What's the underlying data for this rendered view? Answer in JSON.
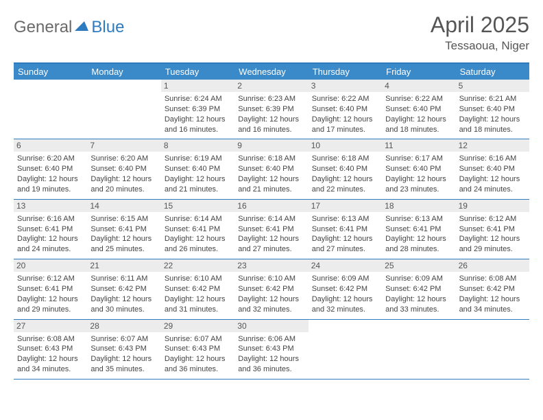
{
  "logo": {
    "part1": "General",
    "part2": "Blue"
  },
  "title": "April 2025",
  "location": "Tessaoua, Niger",
  "header_bg": "#3a89c9",
  "border_color": "#2f7bbf",
  "daynum_bg": "#ececec",
  "weekdays": [
    "Sunday",
    "Monday",
    "Tuesday",
    "Wednesday",
    "Thursday",
    "Friday",
    "Saturday"
  ],
  "weeks": [
    [
      null,
      null,
      {
        "n": "1",
        "sr": "6:24 AM",
        "ss": "6:39 PM",
        "dl": "12 hours and 16 minutes."
      },
      {
        "n": "2",
        "sr": "6:23 AM",
        "ss": "6:39 PM",
        "dl": "12 hours and 16 minutes."
      },
      {
        "n": "3",
        "sr": "6:22 AM",
        "ss": "6:40 PM",
        "dl": "12 hours and 17 minutes."
      },
      {
        "n": "4",
        "sr": "6:22 AM",
        "ss": "6:40 PM",
        "dl": "12 hours and 18 minutes."
      },
      {
        "n": "5",
        "sr": "6:21 AM",
        "ss": "6:40 PM",
        "dl": "12 hours and 18 minutes."
      }
    ],
    [
      {
        "n": "6",
        "sr": "6:20 AM",
        "ss": "6:40 PM",
        "dl": "12 hours and 19 minutes."
      },
      {
        "n": "7",
        "sr": "6:20 AM",
        "ss": "6:40 PM",
        "dl": "12 hours and 20 minutes."
      },
      {
        "n": "8",
        "sr": "6:19 AM",
        "ss": "6:40 PM",
        "dl": "12 hours and 21 minutes."
      },
      {
        "n": "9",
        "sr": "6:18 AM",
        "ss": "6:40 PM",
        "dl": "12 hours and 21 minutes."
      },
      {
        "n": "10",
        "sr": "6:18 AM",
        "ss": "6:40 PM",
        "dl": "12 hours and 22 minutes."
      },
      {
        "n": "11",
        "sr": "6:17 AM",
        "ss": "6:40 PM",
        "dl": "12 hours and 23 minutes."
      },
      {
        "n": "12",
        "sr": "6:16 AM",
        "ss": "6:40 PM",
        "dl": "12 hours and 24 minutes."
      }
    ],
    [
      {
        "n": "13",
        "sr": "6:16 AM",
        "ss": "6:41 PM",
        "dl": "12 hours and 24 minutes."
      },
      {
        "n": "14",
        "sr": "6:15 AM",
        "ss": "6:41 PM",
        "dl": "12 hours and 25 minutes."
      },
      {
        "n": "15",
        "sr": "6:14 AM",
        "ss": "6:41 PM",
        "dl": "12 hours and 26 minutes."
      },
      {
        "n": "16",
        "sr": "6:14 AM",
        "ss": "6:41 PM",
        "dl": "12 hours and 27 minutes."
      },
      {
        "n": "17",
        "sr": "6:13 AM",
        "ss": "6:41 PM",
        "dl": "12 hours and 27 minutes."
      },
      {
        "n": "18",
        "sr": "6:13 AM",
        "ss": "6:41 PM",
        "dl": "12 hours and 28 minutes."
      },
      {
        "n": "19",
        "sr": "6:12 AM",
        "ss": "6:41 PM",
        "dl": "12 hours and 29 minutes."
      }
    ],
    [
      {
        "n": "20",
        "sr": "6:12 AM",
        "ss": "6:41 PM",
        "dl": "12 hours and 29 minutes."
      },
      {
        "n": "21",
        "sr": "6:11 AM",
        "ss": "6:42 PM",
        "dl": "12 hours and 30 minutes."
      },
      {
        "n": "22",
        "sr": "6:10 AM",
        "ss": "6:42 PM",
        "dl": "12 hours and 31 minutes."
      },
      {
        "n": "23",
        "sr": "6:10 AM",
        "ss": "6:42 PM",
        "dl": "12 hours and 32 minutes."
      },
      {
        "n": "24",
        "sr": "6:09 AM",
        "ss": "6:42 PM",
        "dl": "12 hours and 32 minutes."
      },
      {
        "n": "25",
        "sr": "6:09 AM",
        "ss": "6:42 PM",
        "dl": "12 hours and 33 minutes."
      },
      {
        "n": "26",
        "sr": "6:08 AM",
        "ss": "6:42 PM",
        "dl": "12 hours and 34 minutes."
      }
    ],
    [
      {
        "n": "27",
        "sr": "6:08 AM",
        "ss": "6:43 PM",
        "dl": "12 hours and 34 minutes."
      },
      {
        "n": "28",
        "sr": "6:07 AM",
        "ss": "6:43 PM",
        "dl": "12 hours and 35 minutes."
      },
      {
        "n": "29",
        "sr": "6:07 AM",
        "ss": "6:43 PM",
        "dl": "12 hours and 36 minutes."
      },
      {
        "n": "30",
        "sr": "6:06 AM",
        "ss": "6:43 PM",
        "dl": "12 hours and 36 minutes."
      },
      null,
      null,
      null
    ]
  ],
  "labels": {
    "sunrise": "Sunrise:",
    "sunset": "Sunset:",
    "daylight": "Daylight:"
  }
}
